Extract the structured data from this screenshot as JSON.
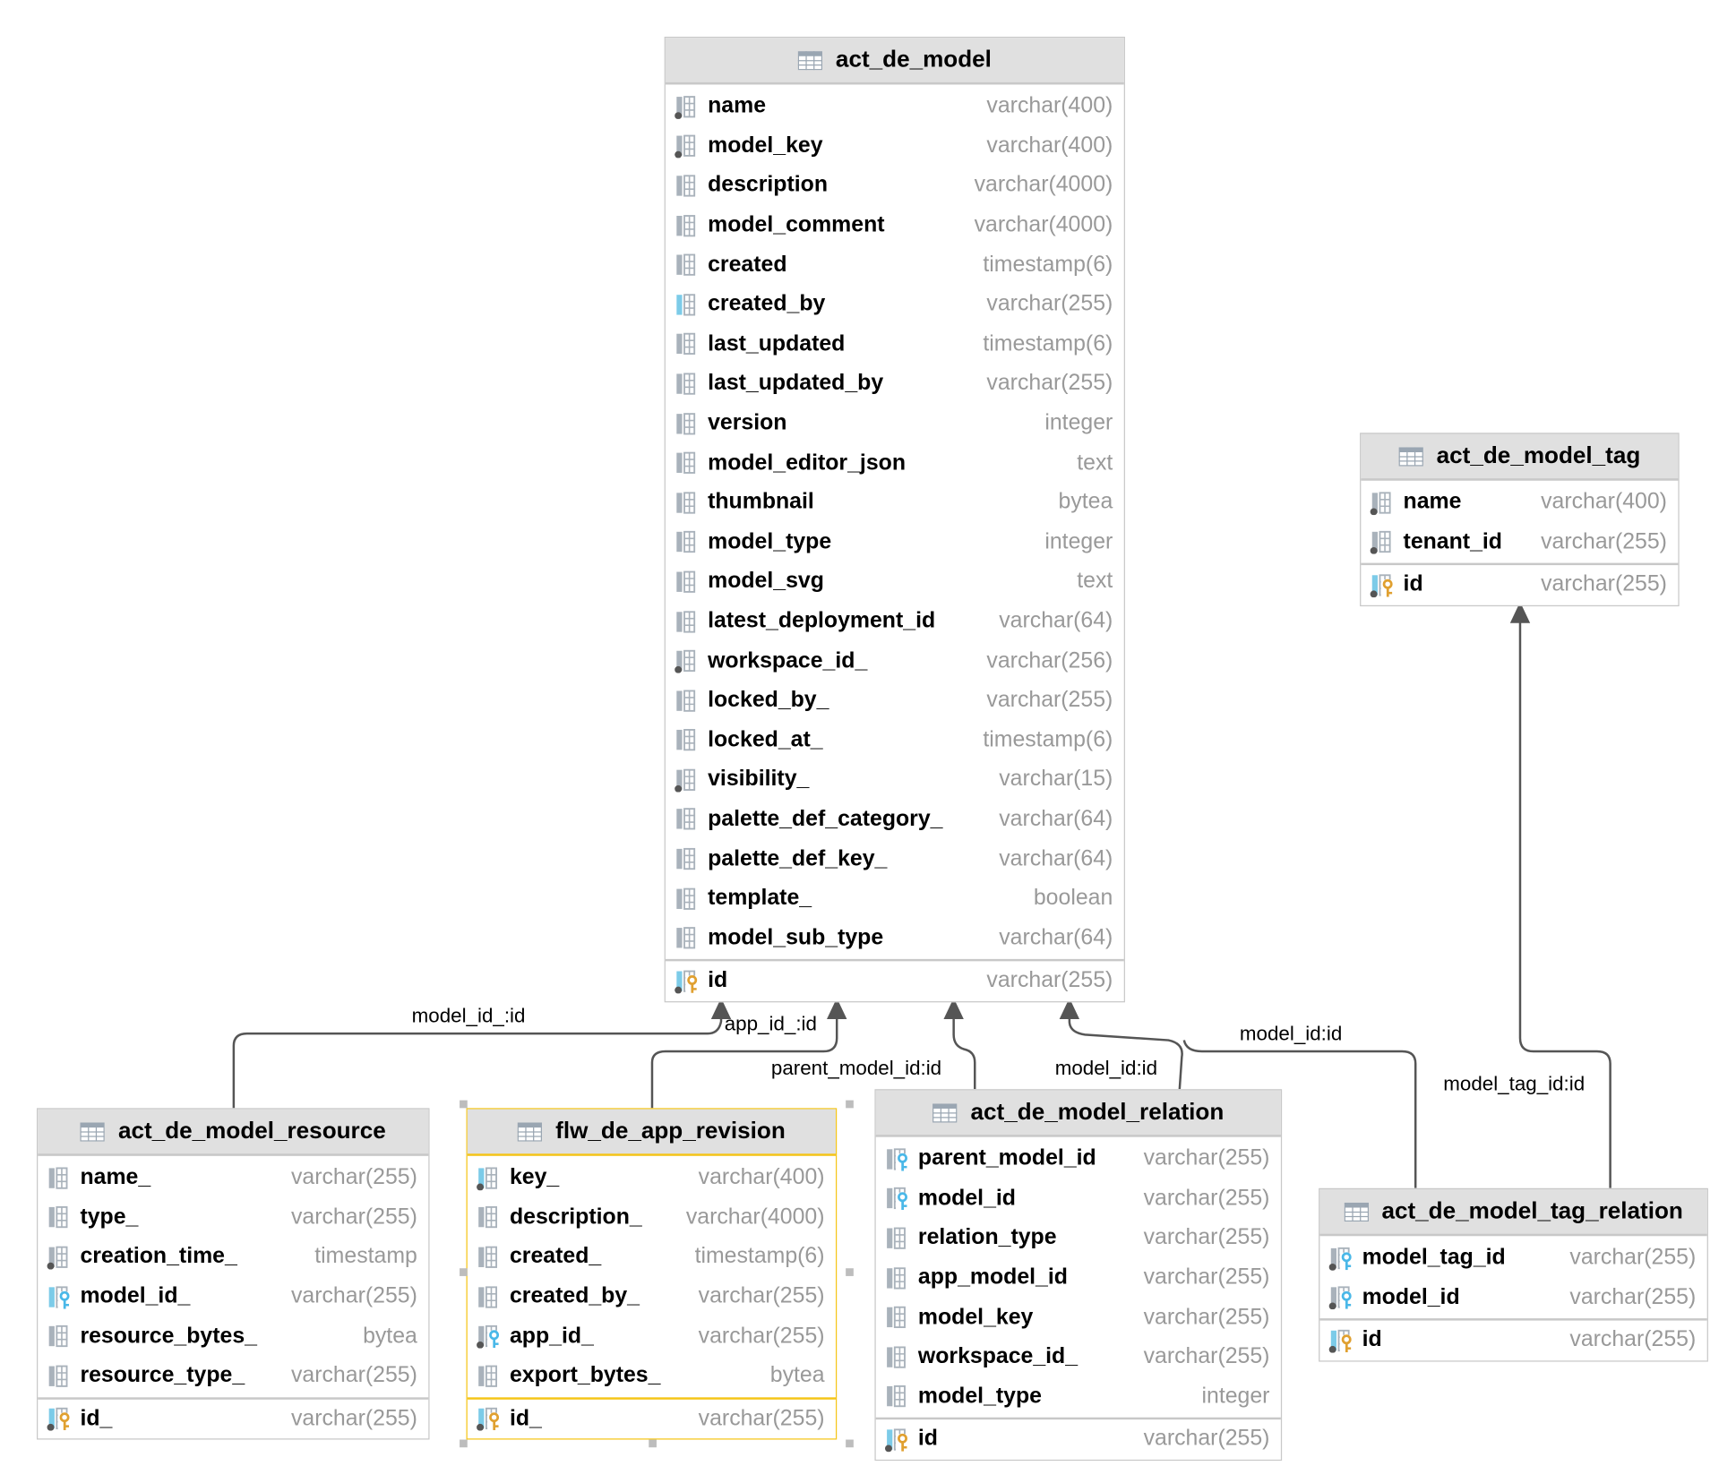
{
  "colors": {
    "header_bg": "#e0e0e0",
    "border": "#c8c8c8",
    "selected_border": "#f5c518",
    "type_text": "#999999",
    "line": "#555555",
    "fk_key": "#4ab8e8",
    "pk_key": "#e0a030",
    "index_bar": "#7ccbe8"
  },
  "tables": [
    {
      "id": "act_de_model",
      "name": "act_de_model",
      "selected": false,
      "columns": [
        {
          "name": "name",
          "type": "varchar(400)",
          "icon": "column-notnull-icon"
        },
        {
          "name": "model_key",
          "type": "varchar(400)",
          "icon": "column-notnull-icon"
        },
        {
          "name": "description",
          "type": "varchar(4000)",
          "icon": "column-icon"
        },
        {
          "name": "model_comment",
          "type": "varchar(4000)",
          "icon": "column-icon"
        },
        {
          "name": "created",
          "type": "timestamp(6)",
          "icon": "column-icon"
        },
        {
          "name": "created_by",
          "type": "varchar(255)",
          "icon": "column-indexed-icon"
        },
        {
          "name": "last_updated",
          "type": "timestamp(6)",
          "icon": "column-icon"
        },
        {
          "name": "last_updated_by",
          "type": "varchar(255)",
          "icon": "column-icon"
        },
        {
          "name": "version",
          "type": "integer",
          "icon": "column-icon"
        },
        {
          "name": "model_editor_json",
          "type": "text",
          "icon": "column-icon"
        },
        {
          "name": "thumbnail",
          "type": "bytea",
          "icon": "column-icon"
        },
        {
          "name": "model_type",
          "type": "integer",
          "icon": "column-icon"
        },
        {
          "name": "model_svg",
          "type": "text",
          "icon": "column-icon"
        },
        {
          "name": "latest_deployment_id",
          "type": "varchar(64)",
          "icon": "column-icon"
        },
        {
          "name": "workspace_id_",
          "type": "varchar(256)",
          "icon": "column-notnull-icon"
        },
        {
          "name": "locked_by_",
          "type": "varchar(255)",
          "icon": "column-icon"
        },
        {
          "name": "locked_at_",
          "type": "timestamp(6)",
          "icon": "column-icon"
        },
        {
          "name": "visibility_",
          "type": "varchar(15)",
          "icon": "column-notnull-icon"
        },
        {
          "name": "palette_def_category_",
          "type": "varchar(64)",
          "icon": "column-icon"
        },
        {
          "name": "palette_def_key_",
          "type": "varchar(64)",
          "icon": "column-icon"
        },
        {
          "name": "template_",
          "type": "boolean",
          "icon": "column-icon"
        },
        {
          "name": "model_sub_type",
          "type": "varchar(64)",
          "icon": "column-icon"
        }
      ],
      "primary_key": [
        {
          "name": "id",
          "type": "varchar(255)",
          "icon": "primary-key-icon"
        }
      ]
    },
    {
      "id": "act_de_model_tag",
      "name": "act_de_model_tag",
      "selected": false,
      "columns": [
        {
          "name": "name",
          "type": "varchar(400)",
          "icon": "column-notnull-icon"
        },
        {
          "name": "tenant_id",
          "type": "varchar(255)",
          "icon": "column-notnull-icon"
        }
      ],
      "primary_key": [
        {
          "name": "id",
          "type": "varchar(255)",
          "icon": "primary-key-icon"
        }
      ]
    },
    {
      "id": "act_de_model_resource",
      "name": "act_de_model_resource",
      "selected": false,
      "columns": [
        {
          "name": "name_",
          "type": "varchar(255)",
          "icon": "column-icon"
        },
        {
          "name": "type_",
          "type": "varchar(255)",
          "icon": "column-icon"
        },
        {
          "name": "creation_time_",
          "type": "timestamp",
          "icon": "column-notnull-icon"
        },
        {
          "name": "model_id_",
          "type": "varchar(255)",
          "icon": "foreign-key-indexed-icon"
        },
        {
          "name": "resource_bytes_",
          "type": "bytea",
          "icon": "column-icon"
        },
        {
          "name": "resource_type_",
          "type": "varchar(255)",
          "icon": "column-icon"
        }
      ],
      "primary_key": [
        {
          "name": "id_",
          "type": "varchar(255)",
          "icon": "primary-key-icon"
        }
      ]
    },
    {
      "id": "flw_de_app_revision",
      "name": "flw_de_app_revision",
      "selected": true,
      "columns": [
        {
          "name": "key_",
          "type": "varchar(400)",
          "icon": "column-indexed-notnull-icon"
        },
        {
          "name": "description_",
          "type": "varchar(4000)",
          "icon": "column-icon"
        },
        {
          "name": "created_",
          "type": "timestamp(6)",
          "icon": "column-icon"
        },
        {
          "name": "created_by_",
          "type": "varchar(255)",
          "icon": "column-icon"
        },
        {
          "name": "app_id_",
          "type": "varchar(255)",
          "icon": "foreign-key-notnull-icon"
        },
        {
          "name": "export_bytes_",
          "type": "bytea",
          "icon": "column-icon"
        }
      ],
      "primary_key": [
        {
          "name": "id_",
          "type": "varchar(255)",
          "icon": "primary-key-icon"
        }
      ]
    },
    {
      "id": "act_de_model_relation",
      "name": "act_de_model_relation",
      "selected": false,
      "columns": [
        {
          "name": "parent_model_id",
          "type": "varchar(255)",
          "icon": "foreign-key-icon"
        },
        {
          "name": "model_id",
          "type": "varchar(255)",
          "icon": "foreign-key-icon"
        },
        {
          "name": "relation_type",
          "type": "varchar(255)",
          "icon": "column-icon"
        },
        {
          "name": "app_model_id",
          "type": "varchar(255)",
          "icon": "column-icon"
        },
        {
          "name": "model_key",
          "type": "varchar(255)",
          "icon": "column-icon"
        },
        {
          "name": "workspace_id_",
          "type": "varchar(255)",
          "icon": "column-icon"
        },
        {
          "name": "model_type",
          "type": "integer",
          "icon": "column-icon"
        }
      ],
      "primary_key": [
        {
          "name": "id",
          "type": "varchar(255)",
          "icon": "primary-key-icon"
        }
      ]
    },
    {
      "id": "act_de_model_tag_relation",
      "name": "act_de_model_tag_relation",
      "selected": false,
      "columns": [
        {
          "name": "model_tag_id",
          "type": "varchar(255)",
          "icon": "foreign-key-notnull-icon"
        },
        {
          "name": "model_id",
          "type": "varchar(255)",
          "icon": "foreign-key-notnull-icon"
        }
      ],
      "primary_key": [
        {
          "name": "id",
          "type": "varchar(255)",
          "icon": "primary-key-icon"
        }
      ]
    }
  ],
  "relationships": [
    {
      "label": "model_id_:id",
      "from": "act_de_model_resource",
      "to": "act_de_model"
    },
    {
      "label": "app_id_:id",
      "from": "flw_de_app_revision",
      "to": "act_de_model"
    },
    {
      "label": "parent_model_id:id",
      "from": "act_de_model_relation",
      "to": "act_de_model"
    },
    {
      "label": "model_id:id",
      "from": "act_de_model_relation",
      "to": "act_de_model"
    },
    {
      "label": "model_id:id",
      "from": "act_de_model_tag_relation",
      "to": "act_de_model"
    },
    {
      "label": "model_tag_id:id",
      "from": "act_de_model_tag_relation",
      "to": "act_de_model_tag"
    }
  ]
}
